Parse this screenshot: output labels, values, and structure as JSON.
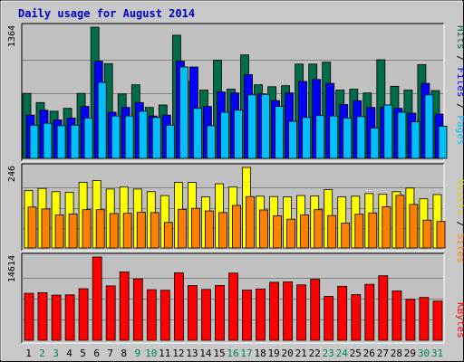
{
  "chart_data": [
    {
      "type": "bar",
      "title": "Daily usage for August 2014",
      "categories": [
        "1",
        "2",
        "3",
        "4",
        "5",
        "6",
        "7",
        "8",
        "9",
        "10",
        "11",
        "12",
        "13",
        "14",
        "15",
        "16",
        "17",
        "18",
        "19",
        "20",
        "21",
        "22",
        "23",
        "24",
        "25",
        "26",
        "27",
        "28",
        "29",
        "30",
        "31"
      ],
      "weekend_days": [
        "2",
        "3",
        "9",
        "10",
        "16",
        "17",
        "23",
        "24",
        "30",
        "31"
      ],
      "ymax_label": "1364",
      "ylim": [
        0,
        1364
      ],
      "series": [
        {
          "name": "Hits",
          "color": "#006c48",
          "values": [
            675,
            580,
            490,
            520,
            675,
            1364,
            985,
            670,
            765,
            530,
            555,
            1280,
            800,
            710,
            1020,
            720,
            1075,
            765,
            745,
            755,
            980,
            980,
            1000,
            710,
            720,
            680,
            1025,
            750,
            710,
            975,
            705
          ]
        },
        {
          "name": "Files",
          "color": "#0000ff",
          "values": [
            450,
            500,
            400,
            420,
            540,
            1010,
            480,
            530,
            580,
            440,
            450,
            1010,
            950,
            540,
            690,
            680,
            870,
            670,
            600,
            680,
            800,
            820,
            780,
            560,
            600,
            530,
            530,
            520,
            470,
            780,
            460
          ]
        },
        {
          "name": "Pages",
          "color": "#00bfff",
          "values": [
            345,
            365,
            340,
            345,
            420,
            790,
            440,
            440,
            490,
            425,
            345,
            950,
            520,
            340,
            480,
            500,
            660,
            665,
            540,
            385,
            425,
            445,
            440,
            420,
            435,
            315,
            555,
            480,
            380,
            660,
            335
          ]
        }
      ]
    },
    {
      "type": "bar",
      "ymax_label": "246",
      "ylim": [
        0,
        246
      ],
      "series": [
        {
          "name": "Visits",
          "color": "#ffff00",
          "values": [
            175,
            182,
            172,
            170,
            200,
            206,
            180,
            186,
            180,
            172,
            160,
            200,
            200,
            156,
            196,
            186,
            246,
            158,
            157,
            156,
            160,
            159,
            178,
            156,
            158,
            166,
            164,
            172,
            183,
            150,
            163
          ]
        },
        {
          "name": "Sites",
          "color": "#ff8000",
          "values": [
            125,
            119,
            101,
            104,
            117,
            117,
            105,
            106,
            109,
            108,
            78,
            118,
            121,
            113,
            108,
            130,
            157,
            116,
            98,
            88,
            101,
            117,
            99,
            76,
            103,
            107,
            126,
            161,
            133,
            85,
            81
          ]
        }
      ]
    },
    {
      "type": "bar",
      "ymax_label": "14614",
      "ylim": [
        0,
        14614
      ],
      "series": [
        {
          "name": "KBytes",
          "color": "#ff0000",
          "values": [
            8250,
            8350,
            7920,
            7970,
            9060,
            14614,
            9550,
            12000,
            10770,
            8880,
            8790,
            11830,
            9590,
            8920,
            9630,
            11780,
            8830,
            9000,
            10190,
            10240,
            9720,
            10710,
            7710,
            9480,
            8010,
            9820,
            11330,
            8670,
            7180,
            7520,
            6880
          ]
        }
      ]
    }
  ]
}
